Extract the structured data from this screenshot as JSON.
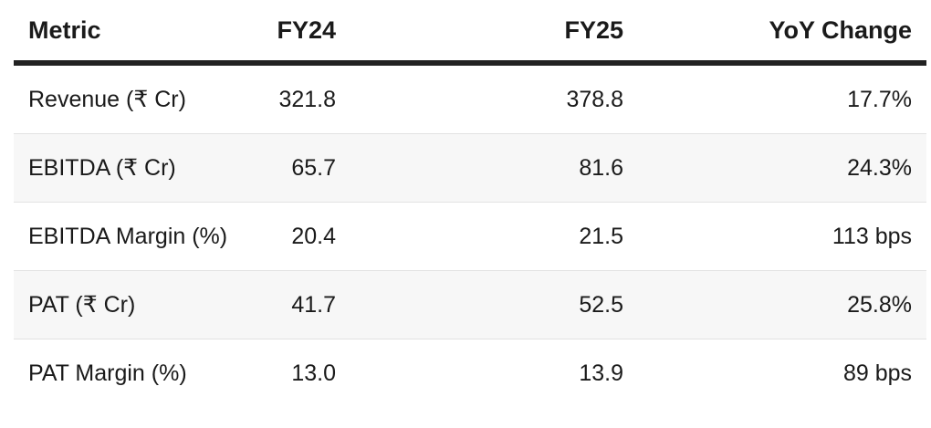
{
  "table": {
    "headers": {
      "metric": "Metric",
      "fy24": "FY24",
      "fy25": "FY25",
      "yoy": "YoY Change"
    },
    "rows": [
      {
        "metric": "Revenue (₹ Cr)",
        "fy24": "321.8",
        "fy25": "378.8",
        "yoy": "17.7%"
      },
      {
        "metric": "EBITDA (₹ Cr)",
        "fy24": "65.7",
        "fy25": "81.6",
        "yoy": "24.3%"
      },
      {
        "metric": "EBITDA Margin (%)",
        "fy24": "20.4",
        "fy25": "21.5",
        "yoy": "113 bps"
      },
      {
        "metric": "PAT (₹ Cr)",
        "fy24": "41.7",
        "fy25": "52.5",
        "yoy": "25.8%"
      },
      {
        "metric": "PAT Margin (%)",
        "fy24": "13.0",
        "fy25": "13.9",
        "yoy": "89 bps"
      }
    ]
  }
}
